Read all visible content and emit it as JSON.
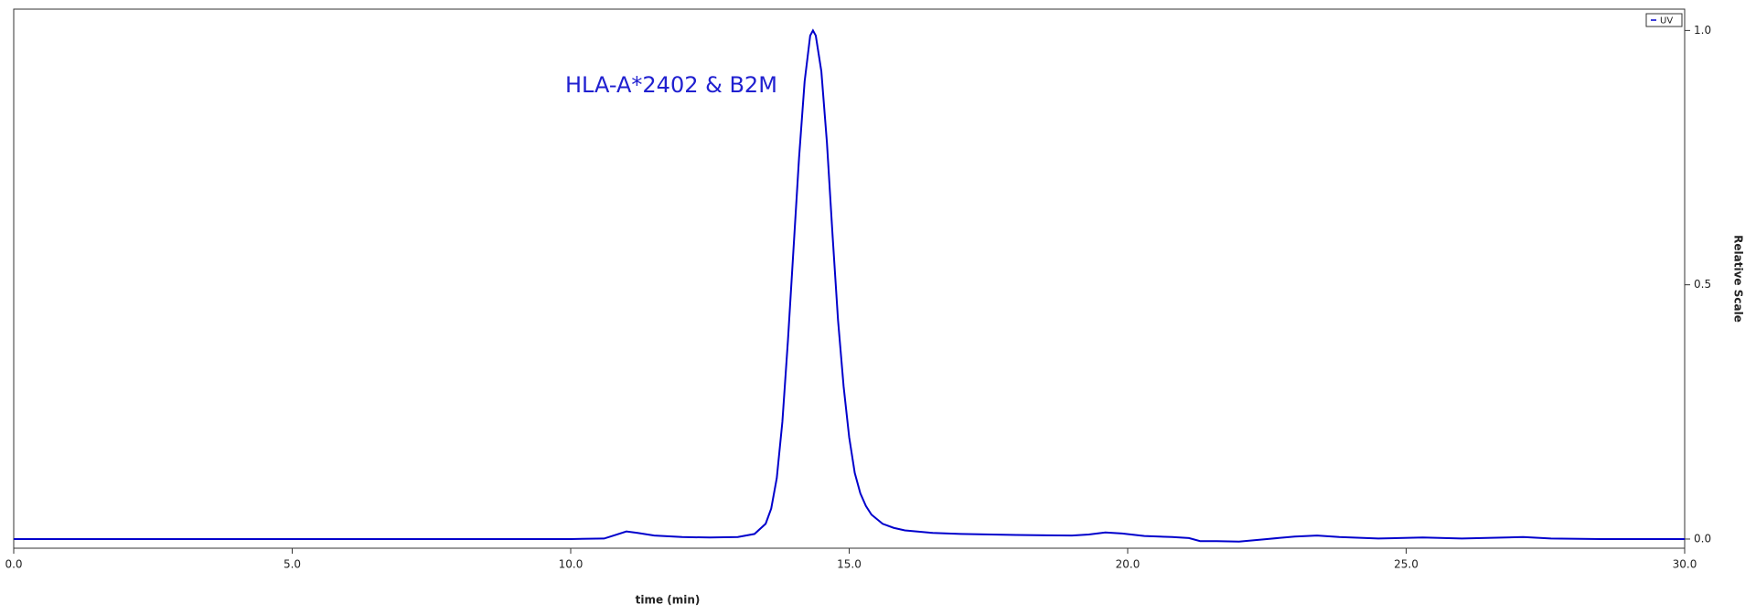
{
  "chart_data": {
    "type": "line",
    "annotation": "HLA-A*2402 & B2M",
    "xlabel": "time (min)",
    "ylabel": "Relative Scale",
    "legend": "top-right",
    "xlim": [
      0,
      30
    ],
    "ylim": [
      -0.018,
      1.042
    ],
    "xticks": [
      {
        "value": 0,
        "label": "0.0"
      },
      {
        "value": 5,
        "label": "5.0"
      },
      {
        "value": 10,
        "label": "10.0"
      },
      {
        "value": 15,
        "label": "15.0"
      },
      {
        "value": 20,
        "label": "20.0"
      },
      {
        "value": 25,
        "label": "25.0"
      },
      {
        "value": 30,
        "label": "30.0"
      }
    ],
    "yticks": [
      {
        "value": 0,
        "label": "0.0"
      },
      0.5,
      {
        "value": 1,
        "label": "1.0"
      }
    ],
    "x": [
      0,
      5,
      10,
      10.6,
      10.8,
      11.0,
      11.2,
      11.5,
      12,
      12.5,
      13,
      13.3,
      13.5,
      13.6,
      13.7,
      13.8,
      13.9,
      14.0,
      14.1,
      14.2,
      14.3,
      14.35,
      14.4,
      14.5,
      14.6,
      14.7,
      14.8,
      14.9,
      15.0,
      15.1,
      15.2,
      15.3,
      15.4,
      15.6,
      15.8,
      16.0,
      16.5,
      17,
      18,
      19,
      19.3,
      19.6,
      19.9,
      20.3,
      20.8,
      21.1,
      21.3,
      21.6,
      22.0,
      22.5,
      23.0,
      23.4,
      23.8,
      24.5,
      25.3,
      26,
      27.1,
      27.6,
      28.5,
      30
    ],
    "series": [
      {
        "name": "UV",
        "color": "#0000cc",
        "values": [
          0.0,
          0.0,
          0.0,
          0.001,
          0.008,
          0.015,
          0.012,
          0.007,
          0.004,
          0.003,
          0.004,
          0.01,
          0.03,
          0.06,
          0.12,
          0.23,
          0.39,
          0.57,
          0.75,
          0.9,
          0.99,
          1.0,
          0.99,
          0.92,
          0.78,
          0.6,
          0.43,
          0.3,
          0.2,
          0.13,
          0.09,
          0.065,
          0.048,
          0.03,
          0.022,
          0.017,
          0.012,
          0.01,
          0.008,
          0.007,
          0.009,
          0.013,
          0.011,
          0.006,
          0.004,
          0.002,
          -0.004,
          -0.004,
          -0.005,
          0.0,
          0.005,
          0.007,
          0.004,
          0.001,
          0.003,
          0.001,
          0.004,
          0.001,
          0.0,
          0.0
        ]
      }
    ]
  }
}
